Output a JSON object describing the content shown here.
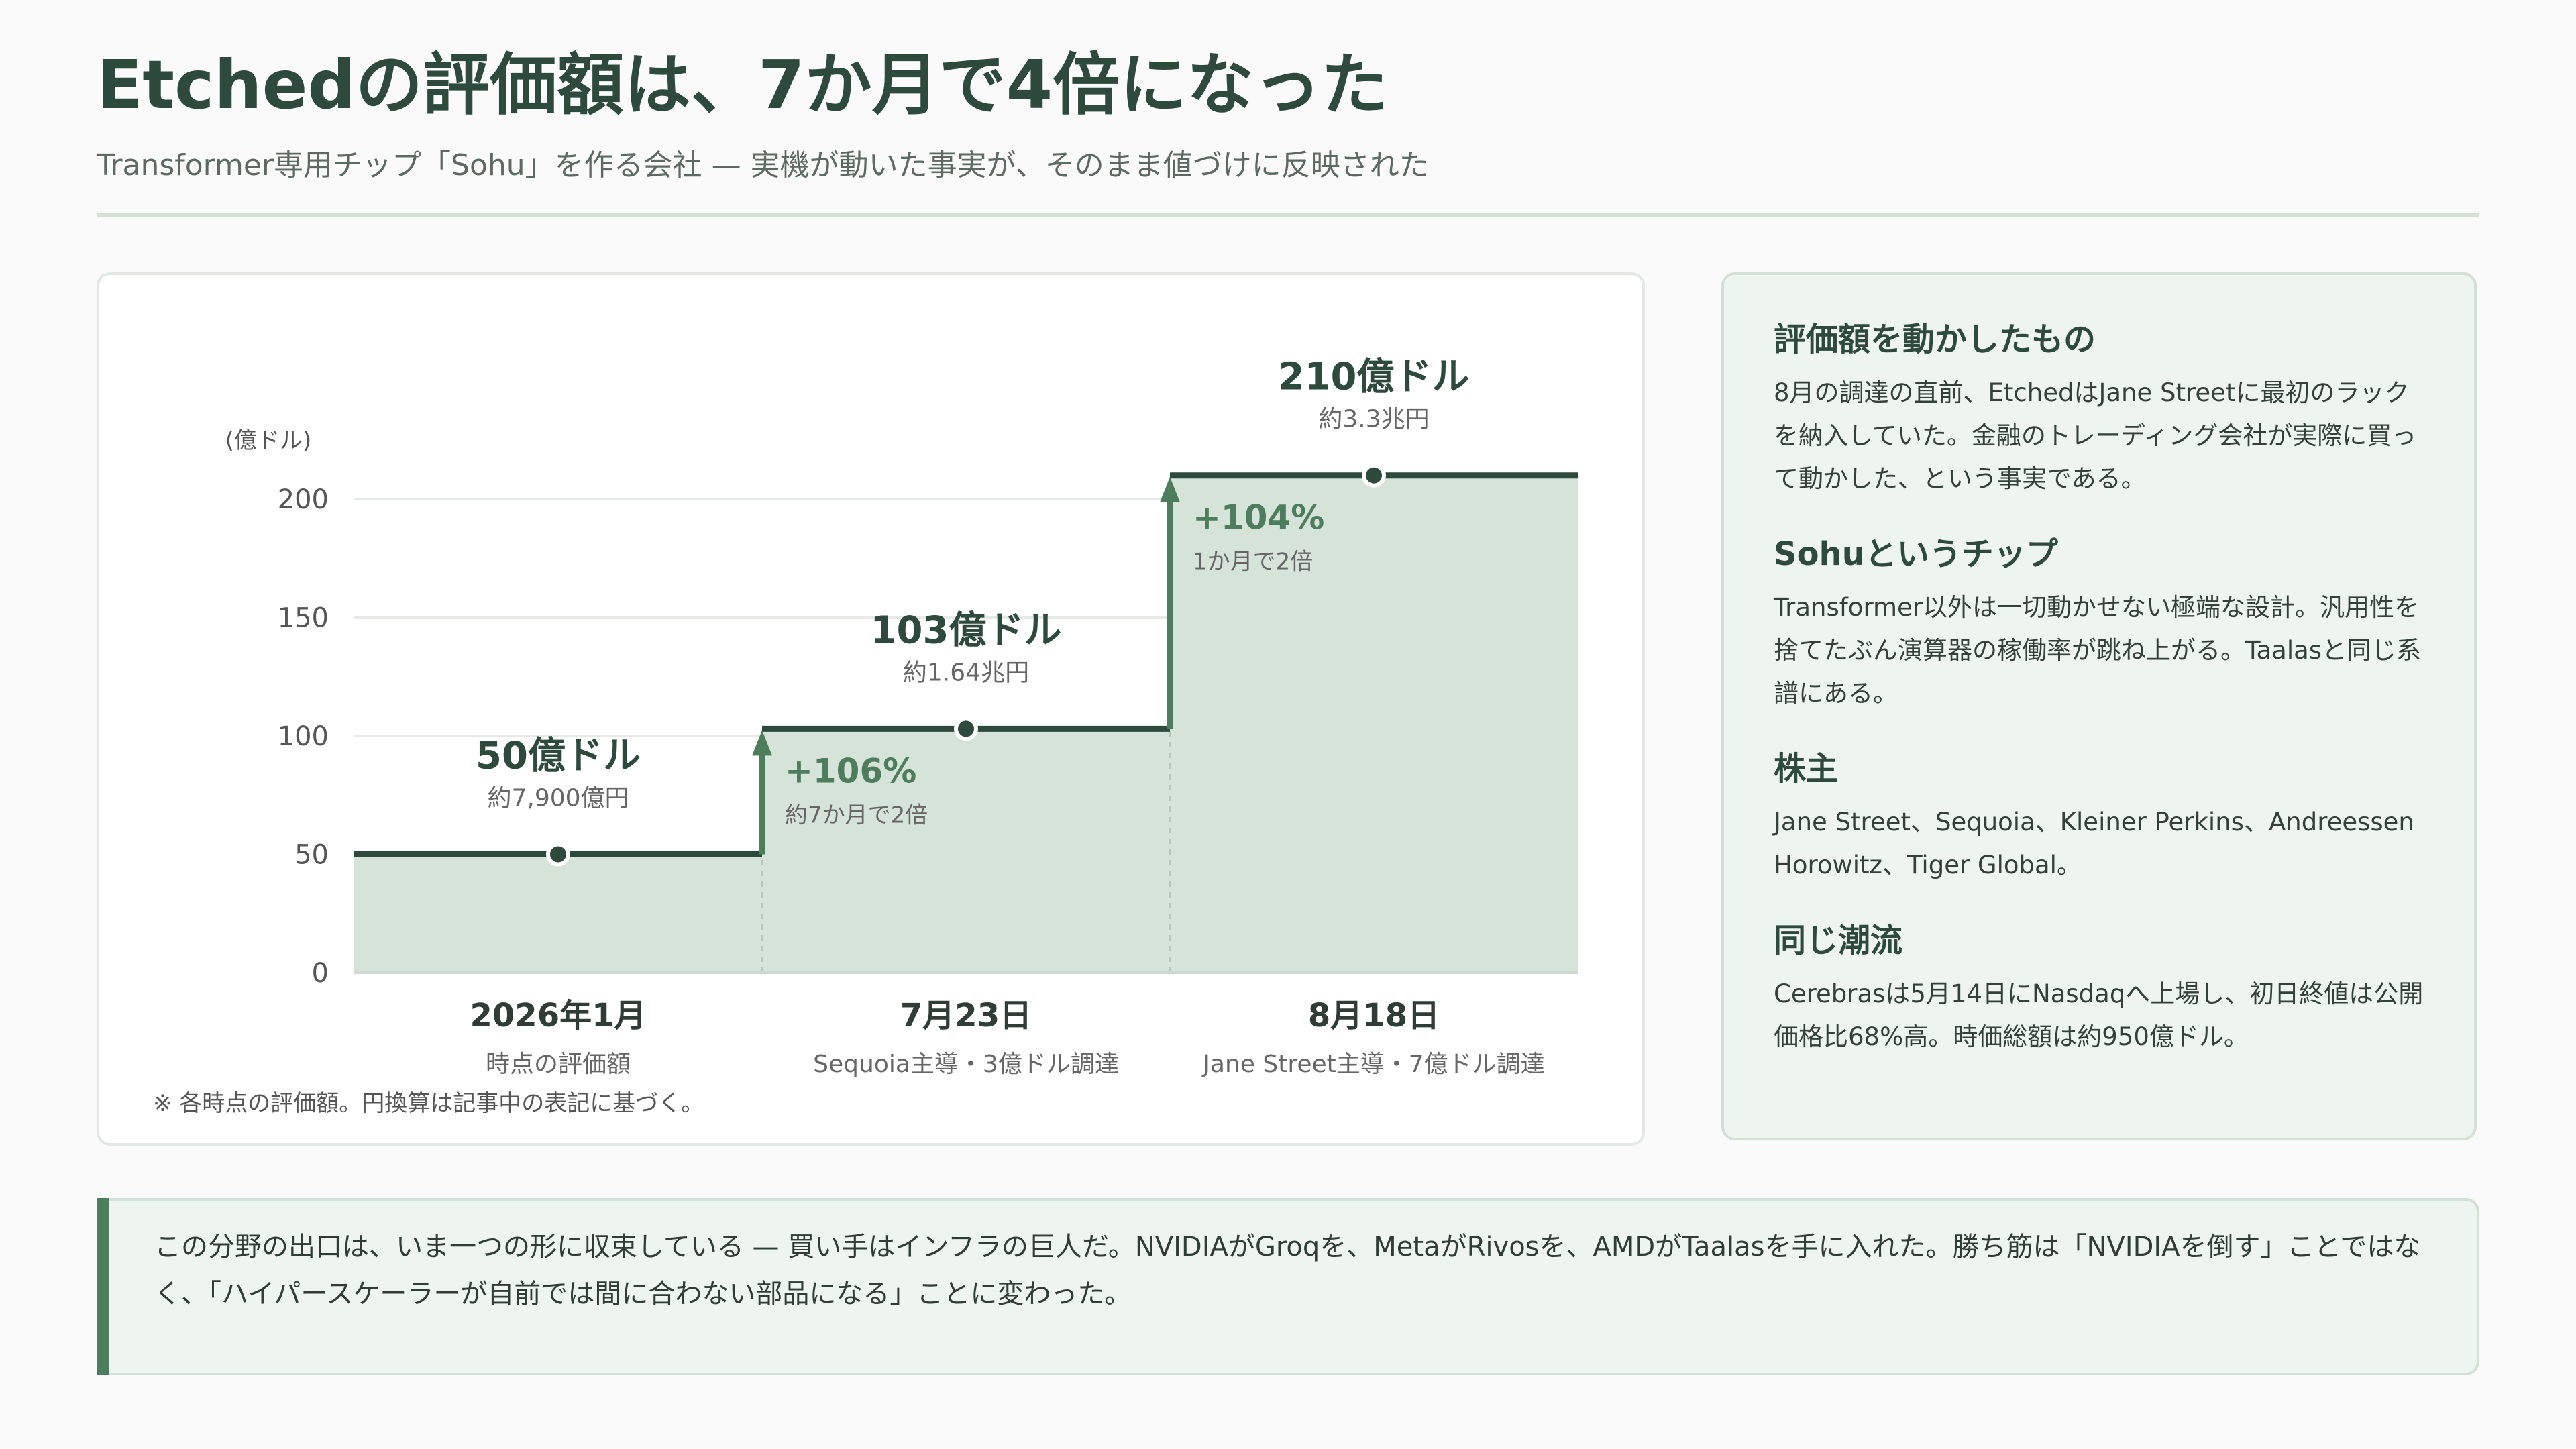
{
  "header": {
    "title": "Etchedの評価額は、7か月で4倍になった",
    "subtitle": "Transformer専用チップ「Sohu」を作る会社 — 実機が動いた事実が、そのまま値づけに反映された"
  },
  "chart_data": {
    "type": "area",
    "step": true,
    "ylabel": "(億ドル)",
    "ylim": [
      0,
      200
    ],
    "yticks": [
      0,
      50,
      100,
      150,
      200
    ],
    "grid": true,
    "categories": [
      "2026年1月",
      "7月23日",
      "8月18日"
    ],
    "category_notes": [
      "時点の評価額",
      "Sequoia主導・3億ドル調達",
      "Jane Street主導・7億ドル調達"
    ],
    "values": [
      50,
      103,
      210
    ],
    "value_labels": [
      "50億ドル",
      "103億ドル",
      "210億ドル"
    ],
    "value_sublabels": [
      "約7,900億円",
      "約1.64兆円",
      "約3.3兆円"
    ],
    "changes": [
      {
        "label": "+106%",
        "note": "約7か月で2倍"
      },
      {
        "label": "+104%",
        "note": "1か月で2倍"
      }
    ],
    "footnote": "※ 各時点の評価額。円換算は記事中の表記に基づく。"
  },
  "sidebar": {
    "sections": [
      {
        "heading": "評価額を動かしたもの",
        "text": "8月の調達の直前、EtchedはJane Streetに最初のラックを納入していた。金融のトレーディング会社が実際に買って動かした、という事実である。"
      },
      {
        "heading": "Sohuというチップ",
        "text": "Transformer以外は一切動かせない極端な設計。汎用性を捨てたぶん演算器の稼働率が跳ね上がる。Taalasと同じ系譜にある。"
      },
      {
        "heading": "株主",
        "text": "Jane Street、Sequoia、Kleiner Perkins、Andreessen Horowitz、Tiger Global。"
      },
      {
        "heading": "同じ潮流",
        "text": "Cerebrasは5月14日にNasdaqへ上場し、初日終値は公開価格比68%高。時価総額は約950億ドル。"
      }
    ]
  },
  "callout": {
    "text": "この分野の出口は、いま一つの形に収束している — 買い手はインフラの巨人だ。NVIDIAがGroqを、MetaがRivosを、AMDがTaalasを手に入れた。勝ち筋は「NVIDIAを倒す」ことではなく、「ハイパースケーラーが自前では間に合わない部品になる」ことに変わった。"
  },
  "colors": {
    "line": "#2e4a3c",
    "area": "#d6e3d8",
    "accent": "#4e7d5d",
    "grid": "#e6eae7"
  }
}
